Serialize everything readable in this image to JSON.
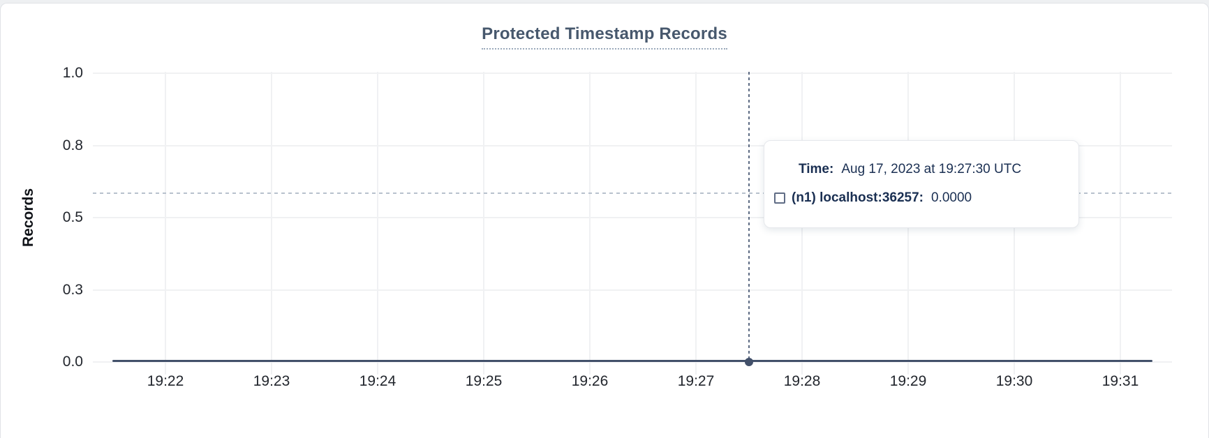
{
  "page": {
    "background": "#eef0f2",
    "card_background": "#ffffff"
  },
  "chart": {
    "title": "Protected Timestamp Records",
    "y_axis": {
      "label": "Records",
      "ticks": [
        "1.0",
        "0.8",
        "0.5",
        "0.3",
        "0.0"
      ]
    },
    "x_axis": {
      "ticks": [
        "19:22",
        "19:23",
        "19:24",
        "19:25",
        "19:26",
        "19:27",
        "19:28",
        "19:29",
        "19:30",
        "19:31"
      ]
    },
    "colors": {
      "title": "#47586d",
      "series_line": "#42506a",
      "gridline": "#f0f1f3",
      "crosshair_vertical": "#5d6b83",
      "crosshair_horizontal": "#b7c1cd",
      "tooltip_text": "#1a2f52"
    }
  },
  "tooltip": {
    "time_label": "Time:",
    "time_value": "Aug 17, 2023 at 19:27:30 UTC",
    "series_label": "(n1) localhost:36257:",
    "series_value": "0.0000"
  },
  "chart_data": {
    "type": "line",
    "title": "Protected Timestamp Records",
    "xlabel": "",
    "ylabel": "Records",
    "x": [
      "19:22",
      "19:23",
      "19:24",
      "19:25",
      "19:26",
      "19:27",
      "19:27:30",
      "19:28",
      "19:29",
      "19:30",
      "19:31"
    ],
    "series": [
      {
        "name": "(n1) localhost:36257",
        "values": [
          0,
          0,
          0,
          0,
          0,
          0,
          0,
          0,
          0,
          0,
          0
        ],
        "color": "#42506a"
      }
    ],
    "ylim": [
      0.0,
      1.0
    ],
    "y_tick_values": [
      0,
      0.25,
      0.5,
      0.75,
      1.0
    ],
    "y_tick_labels": [
      "0.0",
      "0.3",
      "0.5",
      "0.8",
      "1.0"
    ],
    "grid": true,
    "legend_position": "tooltip",
    "crosshair": {
      "time": "Aug 17, 2023 at 19:27:30 UTC",
      "hovered_series_value": 0.0
    }
  }
}
